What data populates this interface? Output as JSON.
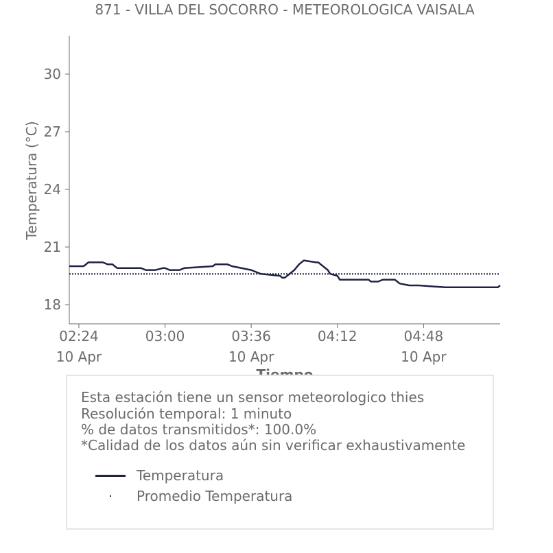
{
  "chart_data": {
    "type": "line",
    "title": "871 - VILLA DEL SOCORRO - METEOROLOGICA VAISALA",
    "xlabel": "Tiempo",
    "ylabel": "Temperatura (°C)",
    "ylim": [
      17.0,
      32.0
    ],
    "y_ticks": [
      18,
      21,
      24,
      27,
      30
    ],
    "xlim_minutes": [
      140,
      320
    ],
    "x_ticks": [
      {
        "t": 144,
        "time": "02:24",
        "date": "10 Apr"
      },
      {
        "t": 180,
        "time": "03:00",
        "date": ""
      },
      {
        "t": 216,
        "time": "03:36",
        "date": "10 Apr"
      },
      {
        "t": 252,
        "time": "04:12",
        "date": ""
      },
      {
        "t": 288,
        "time": "04:48",
        "date": "10 Apr"
      }
    ],
    "x_minutes": [
      140,
      146,
      148,
      154,
      156,
      158,
      159,
      160,
      162,
      170,
      172,
      176,
      179,
      180,
      182,
      186,
      188,
      200,
      201,
      202,
      204,
      206,
      208,
      216,
      218,
      220,
      228,
      229,
      230,
      234,
      236,
      238,
      243,
      244,
      246,
      248,
      249,
      252,
      253,
      256,
      258,
      265,
      266,
      267,
      269,
      271,
      272,
      276,
      277,
      278,
      282,
      286,
      297,
      319,
      320
    ],
    "series": [
      {
        "name": "Temperatura",
        "color": "#1f2244",
        "style": "solid",
        "values": [
          20.0,
          20.0,
          20.2,
          20.2,
          20.1,
          20.1,
          20.0,
          19.9,
          19.9,
          19.9,
          19.8,
          19.8,
          19.9,
          19.9,
          19.8,
          19.8,
          19.9,
          20.0,
          20.1,
          20.1,
          20.1,
          20.1,
          20.0,
          19.8,
          19.7,
          19.6,
          19.5,
          19.4,
          19.4,
          19.8,
          20.1,
          20.3,
          20.2,
          20.2,
          20.0,
          19.8,
          19.6,
          19.5,
          19.3,
          19.3,
          19.3,
          19.3,
          19.2,
          19.2,
          19.2,
          19.3,
          19.3,
          19.3,
          19.2,
          19.1,
          19.0,
          19.0,
          18.9,
          18.9,
          19.0
        ]
      },
      {
        "name": "Promedio Temperatura",
        "color": "#1f2244",
        "style": "dotted",
        "values": [
          19.6,
          19.6,
          19.6,
          19.6,
          19.6,
          19.6,
          19.6,
          19.6,
          19.6,
          19.6,
          19.6,
          19.6,
          19.6,
          19.6,
          19.6,
          19.6,
          19.6,
          19.6,
          19.6,
          19.6,
          19.6,
          19.6,
          19.6,
          19.6,
          19.6,
          19.6,
          19.6,
          19.6,
          19.6,
          19.6,
          19.6,
          19.6,
          19.6,
          19.6,
          19.6,
          19.6,
          19.6,
          19.6,
          19.6,
          19.6,
          19.6,
          19.6,
          19.6,
          19.6,
          19.6,
          19.6,
          19.6,
          19.6,
          19.6,
          19.6,
          19.6,
          19.6,
          19.6,
          19.6,
          19.6
        ]
      }
    ],
    "grid": false,
    "legend_placement": "bottom-box"
  },
  "info": {
    "line1": "Esta estación tiene un sensor meteorologico thies",
    "line2": "Resolución temporal: 1 minuto",
    "line3": "% de datos transmitidos*: 100.0%",
    "line4": "*Calidad de los datos aún sin verificar exhaustivamente"
  },
  "legend": {
    "temp_label": "Temperatura",
    "avg_label": "Promedio Temperatura"
  },
  "colors": {
    "line": "#1f2244",
    "text": "#6b6b6b",
    "axis": "#6b6b6b",
    "box_border": "#e6e6e6"
  }
}
